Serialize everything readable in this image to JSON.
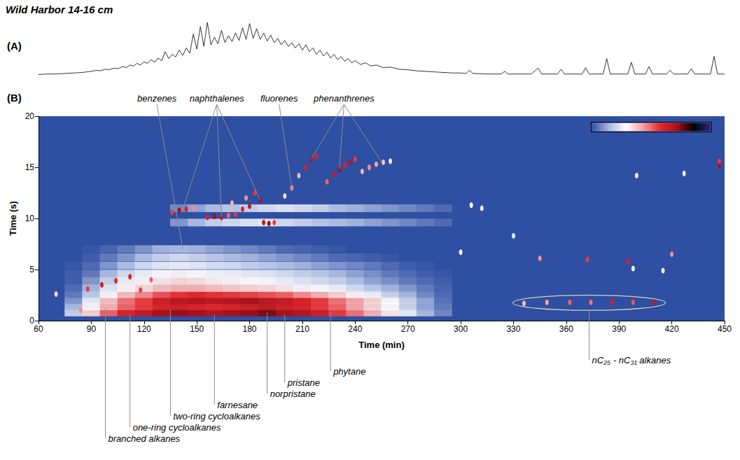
{
  "title": "Wild Harbor 14-16 cm",
  "chart_data": [
    {
      "type": "line",
      "panel": "(A)",
      "color": "#000000",
      "tick_labels": false,
      "xlim": [
        60,
        450
      ],
      "ylim": [
        0,
        100
      ],
      "x": [
        60,
        65,
        70,
        75,
        80,
        85,
        90,
        93,
        95,
        98,
        100,
        103,
        105,
        108,
        110,
        112,
        114,
        116,
        118,
        120,
        122,
        124,
        126,
        128,
        130,
        132,
        134,
        136,
        138,
        140,
        142,
        144,
        146,
        148,
        150,
        152,
        154,
        156,
        158,
        160,
        162,
        164,
        166,
        168,
        170,
        172,
        174,
        176,
        178,
        180,
        182,
        184,
        186,
        188,
        190,
        192,
        194,
        196,
        198,
        200,
        202,
        204,
        206,
        208,
        210,
        212,
        214,
        216,
        218,
        220,
        222,
        224,
        226,
        228,
        230,
        232,
        234,
        236,
        238,
        240,
        243,
        246,
        249,
        252,
        256,
        260,
        265,
        270,
        275,
        280,
        285,
        290,
        295,
        300,
        303,
        305,
        307,
        315,
        323,
        325,
        327,
        340,
        344,
        346,
        355,
        357,
        359,
        369,
        371,
        373,
        381,
        383,
        385,
        395,
        397,
        399,
        405,
        407,
        409,
        417,
        419,
        421,
        429,
        431,
        433,
        442,
        444,
        446,
        450
      ],
      "values": [
        2,
        3,
        3,
        4,
        5,
        6,
        8,
        10,
        9,
        12,
        11,
        14,
        13,
        17,
        15,
        20,
        18,
        23,
        20,
        26,
        23,
        30,
        25,
        33,
        28,
        45,
        32,
        40,
        35,
        48,
        38,
        52,
        42,
        78,
        50,
        92,
        55,
        100,
        58,
        72,
        60,
        85,
        62,
        75,
        64,
        80,
        66,
        90,
        68,
        98,
        70,
        88,
        68,
        80,
        65,
        76,
        62,
        70,
        58,
        66,
        55,
        62,
        52,
        60,
        48,
        58,
        45,
        52,
        40,
        48,
        37,
        44,
        33,
        40,
        30,
        36,
        27,
        32,
        24,
        28,
        21,
        24,
        18,
        20,
        15,
        16,
        12,
        11,
        9,
        8,
        7,
        6,
        5,
        5,
        4,
        10,
        4,
        3,
        3,
        8,
        3,
        3,
        14,
        3,
        3,
        12,
        3,
        3,
        15,
        3,
        3,
        32,
        3,
        3,
        25,
        3,
        3,
        17,
        3,
        3,
        10,
        3,
        3,
        13,
        3,
        3,
        36,
        3,
        3
      ]
    },
    {
      "type": "heatmap",
      "panel": "(B)",
      "x_label": "Time (min)",
      "y_label": "Time (s)",
      "xlim": [
        60,
        450
      ],
      "xticks": [
        60,
        90,
        120,
        150,
        180,
        210,
        240,
        270,
        300,
        330,
        360,
        390,
        420,
        450
      ],
      "ylim": [
        0,
        20
      ],
      "yticks": [
        0,
        5,
        10,
        15,
        20
      ],
      "grid": false,
      "color_range": [
        0,
        100
      ],
      "band": {
        "x": [
          80,
          90,
          100,
          110,
          120,
          130,
          140,
          150,
          160,
          170,
          180,
          190,
          200,
          210,
          220,
          230,
          240,
          250,
          260,
          270,
          280,
          290
        ],
        "y": [
          0.8,
          1.4,
          2.0,
          2.6,
          3.2,
          3.9,
          4.6,
          5.4,
          6.2,
          7.0,
          9.6,
          11.0
        ],
        "values": [
          [
            20,
            35,
            50,
            60,
            65,
            70,
            72,
            70,
            68,
            70,
            72,
            75,
            70,
            68,
            62,
            55,
            48,
            40,
            32,
            25,
            15,
            8
          ],
          [
            15,
            30,
            40,
            50,
            55,
            60,
            62,
            60,
            58,
            60,
            62,
            65,
            62,
            60,
            55,
            50,
            42,
            35,
            28,
            20,
            12,
            6
          ],
          [
            10,
            25,
            38,
            48,
            55,
            62,
            66,
            68,
            66,
            68,
            70,
            66,
            64,
            60,
            55,
            48,
            42,
            35,
            28,
            20,
            12,
            5
          ],
          [
            6,
            18,
            30,
            38,
            45,
            52,
            56,
            58,
            56,
            55,
            54,
            52,
            50,
            45,
            40,
            35,
            30,
            26,
            20,
            14,
            8,
            4
          ],
          [
            4,
            14,
            24,
            30,
            34,
            38,
            40,
            40,
            38,
            36,
            35,
            34,
            32,
            30,
            28,
            26,
            22,
            18,
            14,
            10,
            6,
            3
          ],
          [
            2,
            10,
            20,
            26,
            30,
            32,
            34,
            33,
            31,
            30,
            29,
            28,
            26,
            24,
            22,
            20,
            16,
            12,
            9,
            6,
            4,
            2
          ],
          [
            2,
            6,
            15,
            22,
            26,
            28,
            30,
            29,
            27,
            26,
            25,
            24,
            22,
            20,
            18,
            15,
            12,
            9,
            6,
            4,
            2,
            1
          ],
          [
            1,
            4,
            10,
            16,
            22,
            25,
            26,
            25,
            23,
            22,
            20,
            18,
            16,
            14,
            12,
            10,
            8,
            6,
            4,
            2,
            1,
            0
          ],
          [
            0,
            2,
            6,
            10,
            16,
            20,
            22,
            20,
            18,
            16,
            14,
            12,
            10,
            8,
            6,
            4,
            3,
            2,
            1,
            0,
            0,
            0
          ],
          [
            0,
            1,
            3,
            6,
            10,
            14,
            15,
            14,
            12,
            10,
            8,
            6,
            4,
            3,
            2,
            1,
            0,
            0,
            0,
            0,
            0,
            0
          ],
          [
            0,
            0,
            0,
            0,
            0,
            0,
            10,
            15,
            20,
            22,
            24,
            25,
            22,
            20,
            18,
            16,
            14,
            12,
            10,
            8,
            6,
            4
          ],
          [
            0,
            0,
            0,
            0,
            0,
            0,
            8,
            12,
            16,
            18,
            20,
            22,
            24,
            22,
            20,
            16,
            14,
            12,
            10,
            8,
            6,
            4
          ]
        ]
      },
      "peaks": [
        [
          136,
          10.6,
          55
        ],
        [
          140,
          10.8,
          70
        ],
        [
          144,
          10.9,
          60
        ],
        [
          148,
          11.0,
          45
        ],
        [
          156,
          10.1,
          60
        ],
        [
          160,
          10.2,
          72
        ],
        [
          164,
          10.1,
          65
        ],
        [
          168,
          10.3,
          50
        ],
        [
          172,
          10.4,
          55
        ],
        [
          176,
          10.9,
          60
        ],
        [
          180,
          11.2,
          65
        ],
        [
          183,
          12.5,
          55
        ],
        [
          186,
          11.8,
          70
        ],
        [
          188,
          9.6,
          65
        ],
        [
          191,
          9.5,
          70
        ],
        [
          194,
          9.6,
          55
        ],
        [
          178,
          12.0,
          45
        ],
        [
          170,
          11.5,
          40
        ],
        [
          200,
          12.2,
          35
        ],
        [
          204,
          13.0,
          45
        ],
        [
          208,
          14.2,
          40
        ],
        [
          212,
          15.0,
          60
        ],
        [
          215,
          15.8,
          70
        ],
        [
          218,
          16.1,
          60
        ],
        [
          224,
          13.6,
          50
        ],
        [
          228,
          14.3,
          65
        ],
        [
          231,
          14.8,
          72
        ],
        [
          234,
          15.2,
          60
        ],
        [
          237,
          15.5,
          68
        ],
        [
          240,
          15.8,
          55
        ],
        [
          244,
          14.6,
          40
        ],
        [
          248,
          15.0,
          45
        ],
        [
          252,
          15.3,
          42
        ],
        [
          256,
          15.5,
          38
        ],
        [
          260,
          15.6,
          32
        ],
        [
          88,
          3.1,
          55
        ],
        [
          96,
          3.5,
          62
        ],
        [
          104,
          3.9,
          58
        ],
        [
          112,
          4.3,
          60
        ],
        [
          118,
          3.0,
          55
        ],
        [
          124,
          4.0,
          50
        ],
        [
          70,
          2.6,
          35
        ],
        [
          84,
          1.0,
          45
        ],
        [
          300,
          6.7,
          30
        ],
        [
          306,
          11.3,
          28
        ],
        [
          312,
          11.0,
          25
        ],
        [
          330,
          8.3,
          25
        ],
        [
          345,
          6.1,
          45
        ],
        [
          372,
          6.0,
          55
        ],
        [
          395,
          5.8,
          60
        ],
        [
          398,
          5.1,
          30
        ],
        [
          420,
          6.5,
          45
        ],
        [
          400,
          14.2,
          25
        ],
        [
          427,
          14.4,
          25
        ],
        [
          447,
          15.2,
          70
        ],
        [
          447,
          15.6,
          55
        ],
        [
          415,
          4.9,
          25
        ],
        [
          336,
          1.7,
          38
        ],
        [
          349,
          1.8,
          42
        ],
        [
          362,
          1.8,
          50
        ],
        [
          374,
          1.8,
          48
        ],
        [
          386,
          1.8,
          62
        ],
        [
          398,
          1.8,
          52
        ],
        [
          410,
          1.8,
          66
        ]
      ],
      "annotations": [
        {
          "text": "benzenes",
          "points": [
            [
              142,
              7.0
            ]
          ]
        },
        {
          "text": "naphthalenes",
          "points": [
            [
              142,
              10.9
            ],
            [
              164,
              10.2
            ],
            [
              186,
              11.8
            ]
          ]
        },
        {
          "text": "fluorenes",
          "points": [
            [
              204,
              13.0
            ]
          ]
        },
        {
          "text": "phenanthrenes",
          "points": [
            [
              215,
              15.8
            ],
            [
              231,
              14.8
            ],
            [
              255,
              15.5
            ]
          ]
        },
        {
          "text": "branched alkanes",
          "points": [
            [
              98,
              1.4
            ]
          ]
        },
        {
          "text": "one-ring cycloalkanes",
          "points": [
            [
              112,
              0.8
            ]
          ]
        },
        {
          "text": "two-ring cycloalkanes",
          "points": [
            [
              135,
              1.3
            ]
          ]
        },
        {
          "text": "farnesane",
          "points": [
            [
              160,
              0.8
            ]
          ]
        },
        {
          "text": "norpristane",
          "points": [
            [
              190,
              1.0
            ]
          ]
        },
        {
          "text": "pristane",
          "points": [
            [
              200,
              0.8
            ]
          ]
        },
        {
          "text": "phytane",
          "points": [
            [
              226,
              1.1
            ]
          ]
        },
        {
          "text": "nC₂₅ - nC₃₁ alkanes",
          "marker": "ellipse",
          "points": [
            [
              336,
              1.7
            ],
            [
              349,
              1.8
            ],
            [
              362,
              1.8
            ],
            [
              374,
              1.8
            ],
            [
              386,
              1.8
            ],
            [
              398,
              1.8
            ],
            [
              410,
              1.8
            ]
          ]
        }
      ]
    }
  ]
}
